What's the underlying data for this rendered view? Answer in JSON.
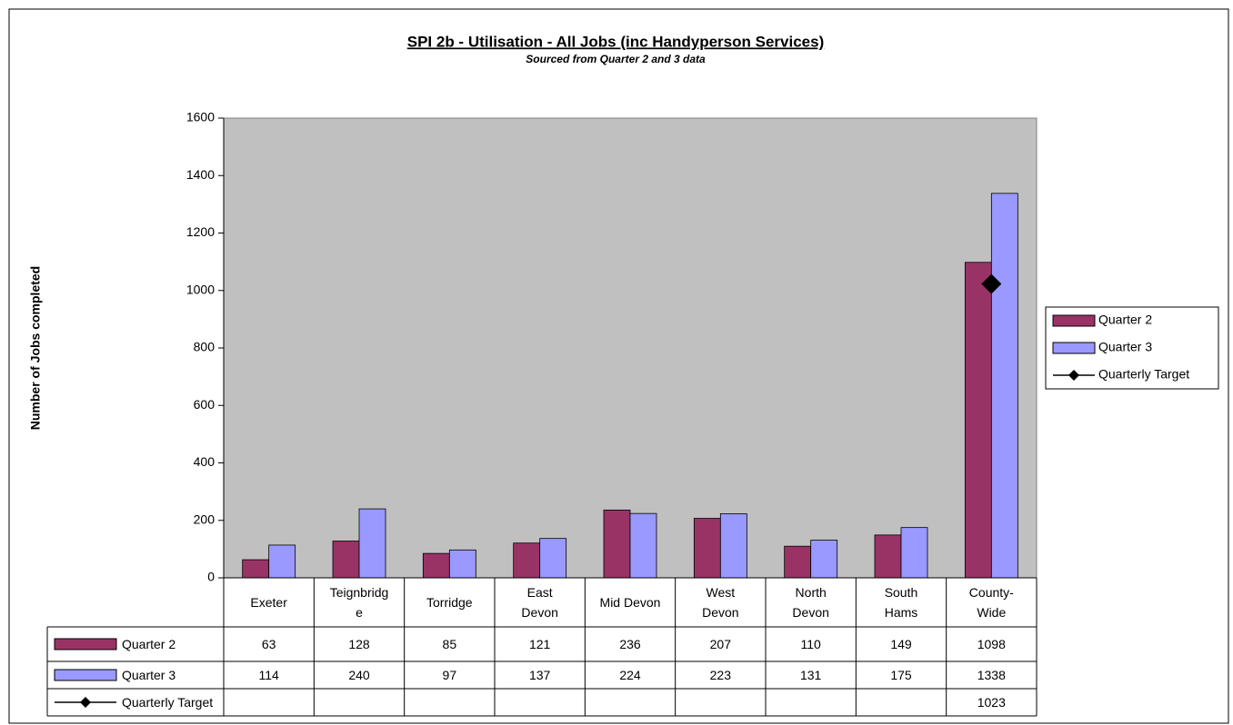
{
  "chart_data": {
    "type": "bar",
    "title": "SPI 2b - Utilisation - All Jobs (inc Handyperson Services)",
    "subtitle": "Sourced from Quarter 2 and 3 data",
    "y_label": "Number of Jobs completed",
    "categories": [
      "Exeter",
      "Teignbridge",
      "Torridge",
      "East Devon",
      "Mid Devon",
      "West Devon",
      "North Devon",
      "South Hams",
      "County-Wide"
    ],
    "series": [
      {
        "name": "Quarter 2",
        "type": "bar",
        "color": "#993366",
        "values": [
          63,
          128,
          85,
          121,
          236,
          207,
          110,
          149,
          1098
        ]
      },
      {
        "name": "Quarter 3",
        "type": "bar",
        "color": "#9999ff",
        "values": [
          114,
          240,
          97,
          137,
          224,
          223,
          131,
          175,
          1338
        ]
      },
      {
        "name": "Quarterly Target",
        "type": "line",
        "color": "#000000",
        "values": [
          null,
          null,
          null,
          null,
          null,
          null,
          null,
          null,
          1023
        ]
      }
    ],
    "ylim": [
      0,
      1600
    ],
    "yticks": [
      0,
      200,
      400,
      600,
      800,
      1000,
      1200,
      1400,
      1600
    ],
    "plot_background": "#c0c0c0",
    "legend": "right",
    "data_table": true
  }
}
